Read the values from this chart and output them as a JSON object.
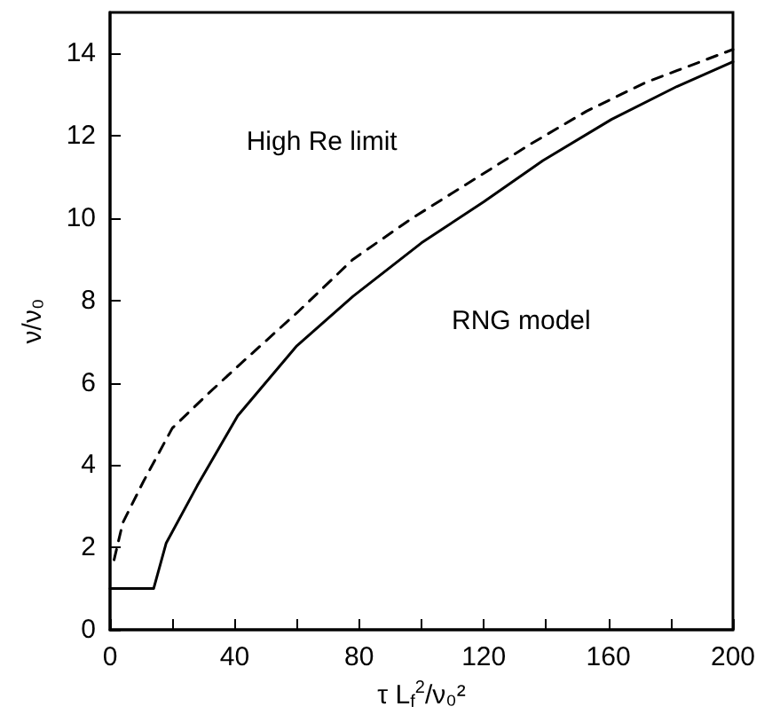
{
  "chart_data": {
    "type": "line",
    "xlabel": "τ L$_{f}$$^{2}$/ν₀²",
    "ylabel": "ν/ν₀",
    "xlim": [
      0,
      200
    ],
    "ylim": [
      0,
      15
    ],
    "xticks": [
      0,
      {
        "value": 20,
        "label": null
      },
      40,
      {
        "value": 60,
        "label": null
      },
      80,
      {
        "value": 100,
        "label": null
      },
      120,
      {
        "value": 140,
        "label": null
      },
      160,
      {
        "value": 180,
        "label": null
      },
      200
    ],
    "yticks": [
      0,
      2,
      4,
      6,
      8,
      10,
      12,
      14
    ],
    "grid": false,
    "legend": false,
    "marker": "none",
    "series": [
      {
        "name": "High Re limit",
        "color": "#000000",
        "line_style": "dashed",
        "x": [
          1.3,
          4.1,
          10.7,
          20,
          31,
          41,
          60,
          78,
          97,
          116,
          135,
          153,
          172,
          200
        ],
        "values": [
          1.7,
          2.6,
          3.6,
          4.9,
          5.7,
          6.4,
          7.7,
          9.0,
          10.0,
          10.9,
          11.8,
          12.6,
          13.3,
          14.1
        ]
      },
      {
        "name": "RNG model",
        "color": "#000000",
        "line_style": "solid",
        "x": [
          0,
          14,
          18,
          28,
          41,
          60,
          78,
          100,
          120,
          139,
          161,
          182,
          200
        ],
        "values": [
          1,
          1,
          2.1,
          3.5,
          5.2,
          6.9,
          8.1,
          9.4,
          10.4,
          11.4,
          12.4,
          13.2,
          13.8
        ]
      }
    ]
  }
}
